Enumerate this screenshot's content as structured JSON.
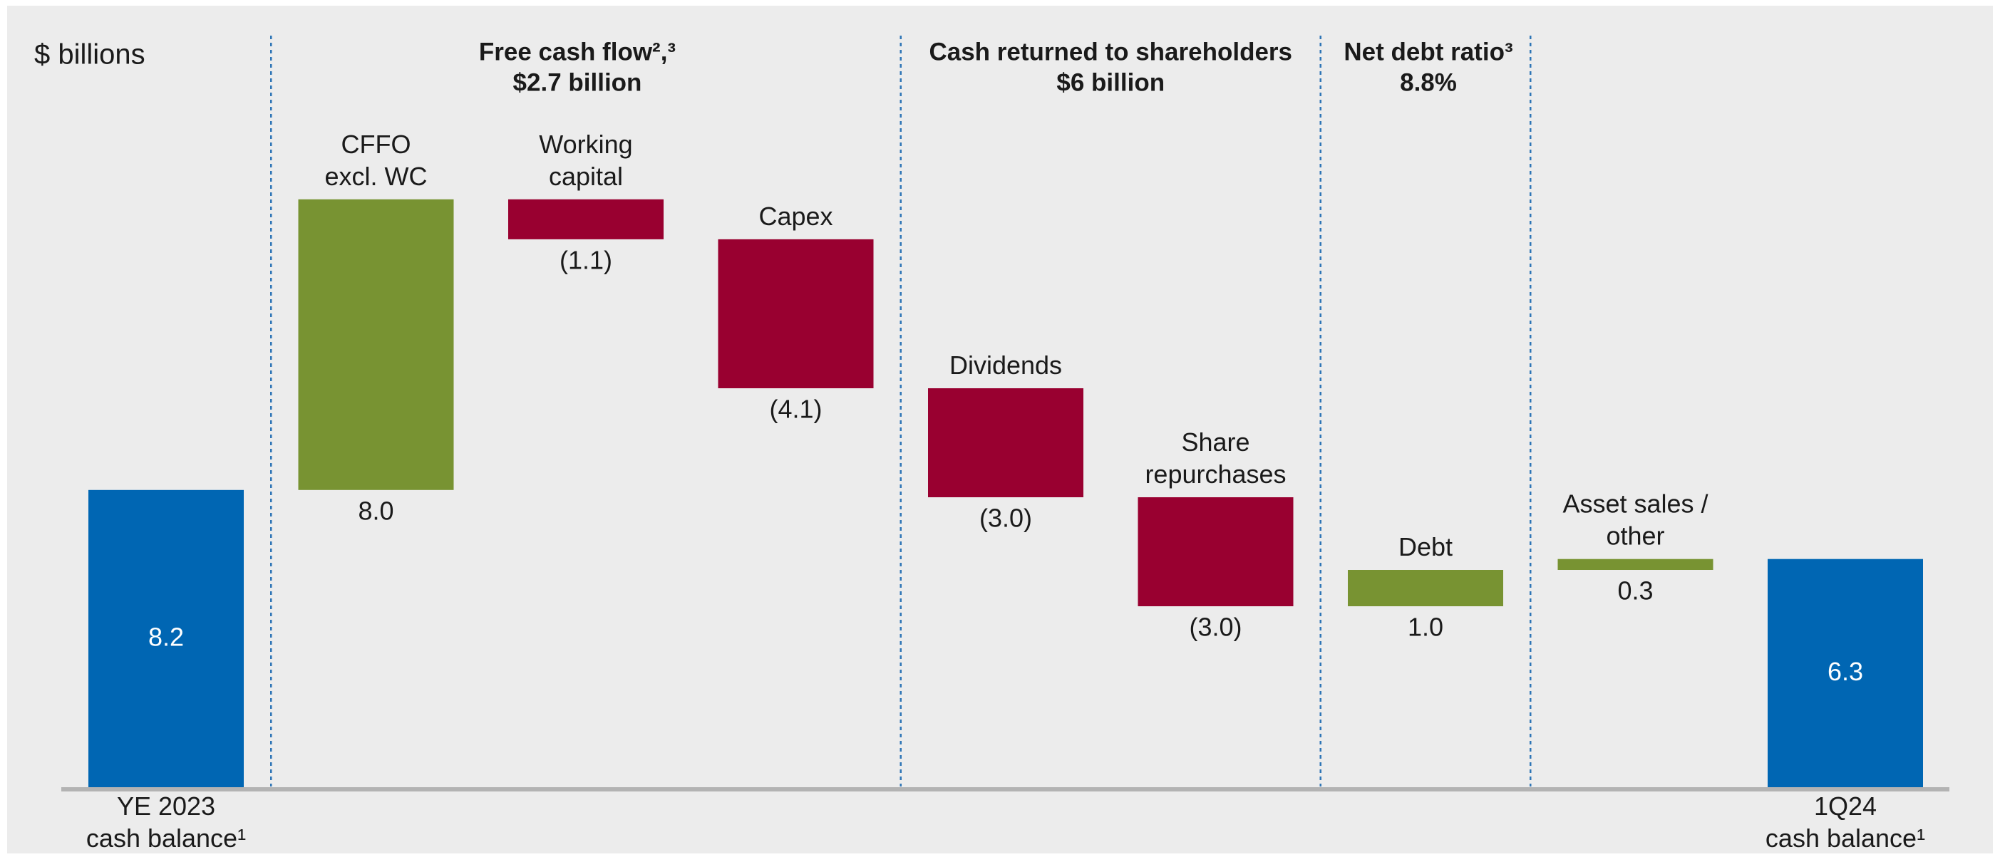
{
  "chart_data": {
    "type": "waterfall",
    "unit_label": "$ billions",
    "headers": [
      [
        "Free cash flow²,³",
        "$2.7 billion"
      ],
      [
        "Cash returned to shareholders",
        "$6 billion"
      ],
      [
        "Net debt ratio³",
        "8.8%"
      ]
    ],
    "categories": [
      "YE 2023\ncash balance¹",
      "CFFO\nexcl. WC",
      "Working\ncapital",
      "Capex",
      "Dividends",
      "Share\nrepurchases",
      "Debt",
      "Asset sales /\nother",
      "1Q24\ncash balance¹"
    ],
    "measure": [
      "absolute",
      "relative",
      "relative",
      "relative",
      "relative",
      "relative",
      "relative",
      "relative",
      "absolute"
    ],
    "values": [
      8.2,
      8.0,
      -1.1,
      -4.1,
      -3.0,
      -3.0,
      1.0,
      0.3,
      6.3
    ],
    "value_labels": [
      "8.2",
      "8.0",
      "(1.1)",
      "(4.1)",
      "(3.0)",
      "(3.0)",
      "1.0",
      "0.3",
      "6.3"
    ],
    "colors": {
      "total": "#0066b3",
      "increase": "#789332",
      "decrease": "#990030"
    }
  }
}
